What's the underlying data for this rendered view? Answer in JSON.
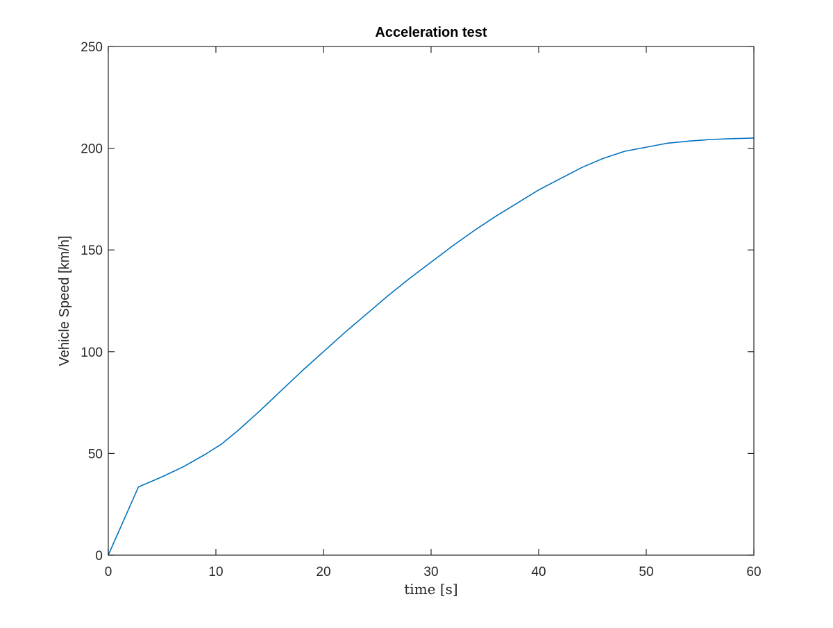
{
  "chart_data": {
    "type": "line",
    "title": "Acceleration test",
    "xlabel": "time [s]",
    "ylabel": "Vehicle Speed [km/h]",
    "xlim": [
      0,
      60
    ],
    "ylim": [
      0,
      250
    ],
    "xticks": [
      0,
      10,
      20,
      30,
      40,
      50,
      60
    ],
    "yticks": [
      0,
      50,
      100,
      150,
      200,
      250
    ],
    "grid": false,
    "line_color": "#0072BD",
    "series": [
      {
        "x": [
          0,
          2.8,
          5,
          7,
          9,
          10.5,
          12,
          14,
          16,
          18,
          20,
          22,
          24,
          26,
          28,
          30,
          32,
          34,
          36,
          38,
          40,
          42,
          44,
          46,
          48,
          50,
          52,
          54,
          56,
          58,
          60
        ],
        "y": [
          0,
          33.5,
          38.5,
          43.5,
          49.5,
          54.5,
          61,
          70.5,
          80.5,
          90.5,
          100,
          109.5,
          118.5,
          127.5,
          136,
          144,
          152,
          159.5,
          166.5,
          173,
          179.5,
          185,
          190.5,
          195,
          198.5,
          200.5,
          202.5,
          203.5,
          204.3,
          204.7,
          205
        ]
      }
    ]
  }
}
